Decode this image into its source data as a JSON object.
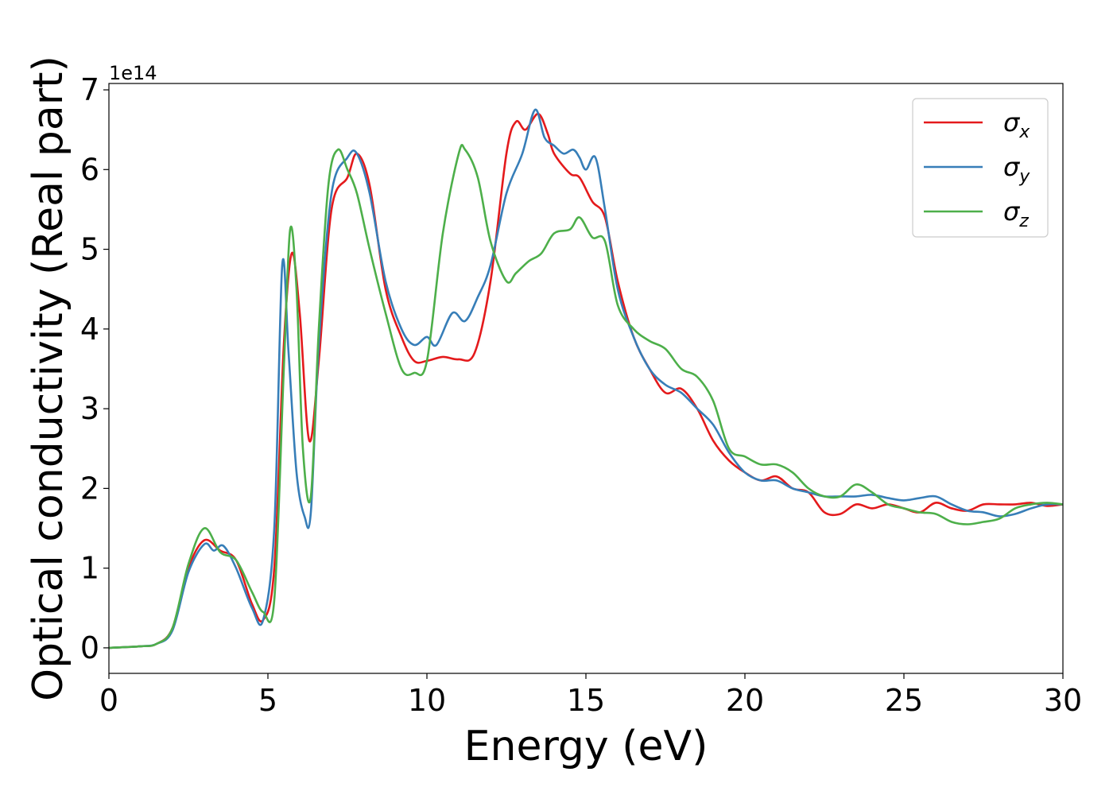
{
  "chart_data": {
    "type": "line",
    "xlabel": "Energy (eV)",
    "ylabel": "Optical conductivity (Real part)",
    "y_offset_label": "1e14",
    "xlim": [
      0,
      30
    ],
    "ylim": [
      -0.32,
      7.08
    ],
    "x_ticks": [
      0,
      5,
      10,
      15,
      20,
      25,
      30
    ],
    "y_ticks": [
      0,
      1,
      2,
      3,
      4,
      5,
      6,
      7
    ],
    "grid": false,
    "legend_position": "top-right",
    "series": [
      {
        "name": "σx",
        "name_base": "σ",
        "name_sub": "x",
        "color": "#e41a1c",
        "x": [
          0,
          1,
          1.5,
          2,
          2.5,
          3,
          3.5,
          4,
          4.5,
          4.85,
          5.2,
          5.5,
          5.75,
          6.0,
          6.3,
          6.6,
          7.0,
          7.5,
          7.8,
          8.2,
          8.7,
          9.2,
          9.6,
          10.0,
          10.5,
          11.0,
          11.5,
          12.0,
          12.5,
          12.8,
          13.1,
          13.5,
          13.8,
          14.0,
          14.5,
          14.8,
          15.2,
          15.6,
          16.0,
          16.5,
          17.0,
          17.5,
          18.0,
          18.5,
          19.0,
          19.5,
          20.0,
          20.5,
          21.0,
          21.5,
          22.0,
          22.5,
          23.0,
          23.5,
          24.0,
          24.5,
          25.0,
          25.5,
          26.0,
          26.5,
          27.0,
          27.5,
          28.0,
          28.5,
          29.0,
          29.5,
          30
        ],
        "y": [
          0,
          0.02,
          0.05,
          0.25,
          1.0,
          1.35,
          1.22,
          1.1,
          0.55,
          0.35,
          1.0,
          3.8,
          4.95,
          4.2,
          2.6,
          3.6,
          5.5,
          5.9,
          6.2,
          5.8,
          4.5,
          3.9,
          3.6,
          3.6,
          3.65,
          3.62,
          3.7,
          4.6,
          6.2,
          6.6,
          6.5,
          6.7,
          6.45,
          6.2,
          5.95,
          5.9,
          5.6,
          5.4,
          4.6,
          3.9,
          3.5,
          3.2,
          3.25,
          3.0,
          2.6,
          2.35,
          2.2,
          2.1,
          2.15,
          2.0,
          1.95,
          1.7,
          1.68,
          1.8,
          1.75,
          1.8,
          1.75,
          1.7,
          1.82,
          1.75,
          1.72,
          1.8,
          1.8,
          1.8,
          1.82,
          1.78,
          1.8
        ]
      },
      {
        "name": "σy",
        "name_base": "σ",
        "name_sub": "y",
        "color": "#377eb8",
        "x": [
          0,
          1,
          1.5,
          2,
          2.5,
          3,
          3.3,
          3.6,
          4.0,
          4.5,
          4.85,
          5.2,
          5.45,
          5.65,
          5.9,
          6.15,
          6.35,
          6.6,
          7.0,
          7.5,
          7.8,
          8.2,
          8.7,
          9.2,
          9.6,
          10.0,
          10.3,
          10.8,
          11.2,
          11.6,
          12.0,
          12.5,
          13.0,
          13.4,
          13.7,
          14.0,
          14.3,
          14.6,
          14.8,
          15.0,
          15.3,
          15.6,
          16.0,
          16.5,
          17.0,
          17.5,
          18.0,
          18.5,
          19.0,
          19.5,
          20.0,
          20.5,
          21.0,
          21.5,
          22.0,
          22.5,
          23.0,
          23.5,
          24.0,
          24.5,
          25.0,
          25.5,
          26.0,
          26.5,
          27.0,
          27.5,
          28.0,
          28.5,
          29.0,
          29.5,
          30
        ],
        "y": [
          0,
          0.02,
          0.05,
          0.22,
          0.95,
          1.3,
          1.22,
          1.28,
          1.0,
          0.5,
          0.35,
          1.5,
          4.8,
          3.7,
          2.2,
          1.65,
          1.7,
          3.8,
          5.7,
          6.15,
          6.2,
          5.7,
          4.6,
          4.0,
          3.8,
          3.9,
          3.8,
          4.2,
          4.1,
          4.4,
          4.8,
          5.7,
          6.2,
          6.75,
          6.4,
          6.3,
          6.2,
          6.25,
          6.15,
          6.0,
          6.15,
          5.5,
          4.5,
          3.9,
          3.5,
          3.3,
          3.2,
          3.0,
          2.8,
          2.45,
          2.2,
          2.1,
          2.1,
          2.0,
          1.95,
          1.9,
          1.9,
          1.9,
          1.92,
          1.88,
          1.85,
          1.88,
          1.9,
          1.8,
          1.72,
          1.7,
          1.65,
          1.68,
          1.75,
          1.8,
          1.8
        ]
      },
      {
        "name": "σz",
        "name_base": "σ",
        "name_sub": "z",
        "color": "#4daf4a",
        "x": [
          0,
          1,
          1.5,
          2,
          2.5,
          3,
          3.5,
          4,
          4.5,
          4.85,
          5.2,
          5.5,
          5.7,
          5.9,
          6.1,
          6.35,
          6.6,
          6.9,
          7.2,
          7.5,
          7.8,
          8.2,
          8.7,
          9.2,
          9.6,
          10.0,
          10.5,
          11.0,
          11.2,
          11.6,
          12.0,
          12.5,
          12.8,
          13.2,
          13.6,
          14.0,
          14.5,
          14.8,
          15.2,
          15.6,
          16.0,
          16.5,
          17.0,
          17.5,
          18.0,
          18.5,
          19.0,
          19.5,
          20.0,
          20.5,
          21.0,
          21.5,
          22.0,
          22.5,
          23.0,
          23.5,
          24.0,
          24.5,
          25.0,
          25.5,
          26.0,
          26.5,
          27.0,
          27.5,
          28.0,
          28.5,
          29.0,
          29.5,
          30
        ],
        "y": [
          0,
          0.02,
          0.05,
          0.25,
          1.05,
          1.5,
          1.2,
          1.1,
          0.7,
          0.45,
          0.6,
          3.5,
          5.25,
          4.5,
          2.5,
          1.9,
          4.0,
          5.8,
          6.25,
          6.0,
          5.7,
          5.0,
          4.2,
          3.5,
          3.45,
          3.6,
          5.2,
          6.2,
          6.25,
          5.9,
          5.1,
          4.6,
          4.7,
          4.85,
          4.95,
          5.2,
          5.25,
          5.4,
          5.15,
          5.1,
          4.3,
          4.0,
          3.85,
          3.75,
          3.5,
          3.4,
          3.1,
          2.5,
          2.4,
          2.3,
          2.3,
          2.2,
          2.0,
          1.9,
          1.9,
          2.05,
          1.95,
          1.8,
          1.75,
          1.7,
          1.68,
          1.58,
          1.55,
          1.58,
          1.62,
          1.75,
          1.8,
          1.82,
          1.8
        ]
      }
    ]
  }
}
